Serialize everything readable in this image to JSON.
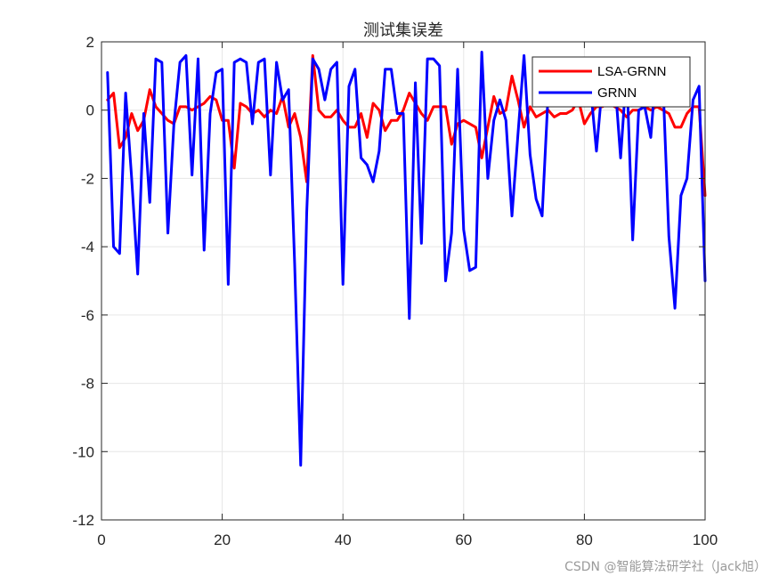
{
  "chart_data": {
    "type": "line",
    "title": "测试集误差",
    "xlabel": "",
    "ylabel": "",
    "xlim": [
      0,
      100
    ],
    "ylim": [
      -12,
      2
    ],
    "xticks": [
      0,
      20,
      40,
      60,
      80,
      100
    ],
    "yticks": [
      -12,
      -10,
      -8,
      -6,
      -4,
      -2,
      0,
      2
    ],
    "grid": true,
    "legend_position": "top-right",
    "series": [
      {
        "name": "LSA-GRNN",
        "color": "#ff0000",
        "x": [
          1,
          2,
          3,
          4,
          5,
          6,
          7,
          8,
          9,
          10,
          11,
          12,
          13,
          14,
          15,
          16,
          17,
          18,
          19,
          20,
          21,
          22,
          23,
          24,
          25,
          26,
          27,
          28,
          29,
          30,
          31,
          32,
          33,
          34,
          35,
          36,
          37,
          38,
          39,
          40,
          41,
          42,
          43,
          44,
          45,
          46,
          47,
          48,
          49,
          50,
          51,
          52,
          53,
          54,
          55,
          56,
          57,
          58,
          59,
          60,
          61,
          62,
          63,
          64,
          65,
          66,
          67,
          68,
          69,
          70,
          71,
          72,
          73,
          74,
          75,
          76,
          77,
          78,
          79,
          80,
          81,
          82,
          83,
          84,
          85,
          86,
          87,
          88,
          89,
          90,
          91,
          92,
          93,
          94,
          95,
          96,
          97,
          98,
          99,
          100
        ],
        "y": [
          0.3,
          0.5,
          -1.1,
          -0.8,
          -0.1,
          -0.6,
          -0.3,
          0.6,
          0.1,
          -0.1,
          -0.3,
          -0.4,
          0.1,
          0.1,
          0.0,
          0.1,
          0.2,
          0.4,
          0.3,
          -0.3,
          -0.3,
          -1.7,
          0.2,
          0.1,
          -0.1,
          0.0,
          -0.2,
          0.0,
          -0.1,
          0.4,
          -0.5,
          -0.1,
          -0.8,
          -2.1,
          1.6,
          0.0,
          -0.2,
          -0.2,
          0.0,
          -0.3,
          -0.5,
          -0.5,
          -0.1,
          -0.8,
          0.2,
          0.0,
          -0.6,
          -0.3,
          -0.3,
          0.0,
          0.5,
          0.2,
          -0.1,
          -0.3,
          0.1,
          0.1,
          0.1,
          -1.0,
          -0.4,
          -0.3,
          -0.4,
          -0.5,
          -1.4,
          -0.5,
          0.4,
          -0.1,
          0.0,
          1.0,
          0.3,
          -0.5,
          0.1,
          -0.2,
          -0.1,
          0.0,
          -0.2,
          -0.1,
          -0.1,
          0.0,
          0.3,
          -0.4,
          -0.1,
          0.1,
          0.1,
          0.2,
          0.1,
          0.0,
          -0.2,
          0.0,
          0.0,
          0.1,
          0.0,
          0.1,
          0.0,
          -0.1,
          -0.5,
          -0.5,
          -0.1,
          0.1,
          0.1,
          -2.5
        ]
      },
      {
        "name": "GRNN",
        "color": "#0000ff",
        "x": [
          1,
          2,
          3,
          4,
          5,
          6,
          7,
          8,
          9,
          10,
          11,
          12,
          13,
          14,
          15,
          16,
          17,
          18,
          19,
          20,
          21,
          22,
          23,
          24,
          25,
          26,
          27,
          28,
          29,
          30,
          31,
          32,
          33,
          34,
          35,
          36,
          37,
          38,
          39,
          40,
          41,
          42,
          43,
          44,
          45,
          46,
          47,
          48,
          49,
          50,
          51,
          52,
          53,
          54,
          55,
          56,
          57,
          58,
          59,
          60,
          61,
          62,
          63,
          64,
          65,
          66,
          67,
          68,
          69,
          70,
          71,
          72,
          73,
          74,
          75,
          76,
          77,
          78,
          79,
          80,
          81,
          82,
          83,
          84,
          85,
          86,
          87,
          88,
          89,
          90,
          91,
          92,
          93,
          94,
          95,
          96,
          97,
          98,
          99,
          100
        ],
        "y": [
          1.1,
          -4.0,
          -4.2,
          0.5,
          -2.0,
          -4.8,
          -0.1,
          -2.7,
          1.5,
          1.4,
          -3.6,
          -0.4,
          1.4,
          1.6,
          -1.9,
          1.5,
          -4.1,
          -0.1,
          1.1,
          1.2,
          -5.1,
          1.4,
          1.5,
          1.4,
          -0.4,
          1.4,
          1.5,
          -1.9,
          1.4,
          0.3,
          0.6,
          -4.5,
          -10.4,
          -3.0,
          1.5,
          1.2,
          0.3,
          1.2,
          1.4,
          -5.1,
          0.7,
          1.2,
          -1.4,
          -1.6,
          -2.1,
          -1.2,
          1.2,
          1.2,
          -0.1,
          -0.1,
          -6.1,
          0.8,
          -3.9,
          1.5,
          1.5,
          1.3,
          -5.0,
          -3.6,
          1.2,
          -3.5,
          -4.7,
          -4.6,
          1.7,
          -2.0,
          -0.3,
          0.3,
          -0.3,
          -3.1,
          -0.7,
          1.6,
          -1.3,
          -2.6,
          -3.1,
          0.5,
          1.0,
          0.6,
          0.4,
          1.0,
          1.1,
          1.2,
          0.7,
          -1.2,
          0.8,
          0.6,
          1.0,
          -1.4,
          1.2,
          -3.8,
          0.0,
          0.1,
          -0.8,
          1.5,
          0.9,
          -3.7,
          -5.8,
          -2.5,
          -2.0,
          0.3,
          0.7,
          -5.0
        ]
      }
    ]
  },
  "watermark": "CSDN @智能算法研学社（Jack旭）"
}
